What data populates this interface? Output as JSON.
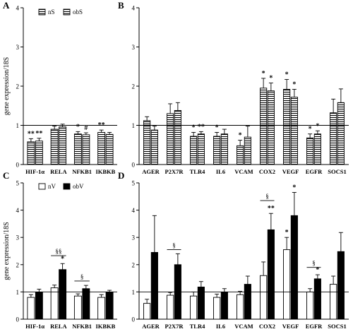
{
  "chart_data": [
    {
      "panel": "A",
      "type": "bar",
      "ylabel": "gene expression/18S",
      "ylim": [
        0,
        4
      ],
      "yticks": [
        0,
        1,
        2,
        3,
        4
      ],
      "reference_line": 1,
      "legend": {
        "position": "top-left",
        "entries": [
          "nS",
          "obS"
        ]
      },
      "categories": [
        "HIF-1α",
        "RELA",
        "NFKB1",
        "IKBKB"
      ],
      "series": [
        {
          "name": "nS",
          "pattern": "horizontal-hatch",
          "values": [
            0.58,
            0.9,
            0.78,
            0.82
          ],
          "errors": [
            0.08,
            0.08,
            0.06,
            0.06
          ]
        },
        {
          "name": "obS",
          "pattern": "horizontal-hatch",
          "values": [
            0.6,
            0.96,
            0.76,
            0.77
          ],
          "errors": [
            0.07,
            0.07,
            0.05,
            0.05
          ]
        }
      ],
      "annotations": [
        {
          "category": 0,
          "series": 0,
          "text": "**"
        },
        {
          "category": 0,
          "series": 1,
          "text": "**"
        },
        {
          "category": 2,
          "series": 0,
          "text": "*"
        },
        {
          "category": 2,
          "series": 1,
          "text": "#"
        },
        {
          "category": 3,
          "series": 0,
          "text": "**"
        }
      ]
    },
    {
      "panel": "B",
      "type": "bar",
      "ylim": [
        0,
        4
      ],
      "yticks": [
        0,
        1,
        2,
        3,
        4
      ],
      "reference_line": 1,
      "categories": [
        "AGER",
        "P2X7R",
        "TLR4",
        "IL6",
        "VCAM",
        "COX2",
        "VEGF",
        "EGFR",
        "SOCS1"
      ],
      "series": [
        {
          "name": "nS",
          "pattern": "horizontal-hatch",
          "values": [
            1.12,
            1.3,
            0.72,
            0.72,
            0.48,
            1.95,
            1.92,
            0.68,
            1.32
          ],
          "errors": [
            0.1,
            0.25,
            0.1,
            0.1,
            0.14,
            0.25,
            0.25,
            0.1,
            0.35
          ]
        },
        {
          "name": "obS",
          "pattern": "horizontal-hatch",
          "values": [
            0.88,
            1.38,
            0.78,
            0.78,
            0.7,
            1.88,
            1.72,
            0.78,
            1.58
          ],
          "errors": [
            0.1,
            0.2,
            0.06,
            0.12,
            0.28,
            0.2,
            0.2,
            0.08,
            0.35
          ]
        }
      ],
      "annotations": [
        {
          "category": 2,
          "series": 0,
          "text": "*"
        },
        {
          "category": 2,
          "series": 1,
          "text": "**"
        },
        {
          "category": 3,
          "series": 0,
          "text": "*"
        },
        {
          "category": 4,
          "series": 0,
          "text": "*"
        },
        {
          "category": 5,
          "series": 0,
          "text": "*"
        },
        {
          "category": 5,
          "series": 1,
          "text": "*"
        },
        {
          "category": 6,
          "series": 0,
          "text": "*"
        },
        {
          "category": 6,
          "series": 1,
          "text": "*"
        },
        {
          "category": 7,
          "series": 0,
          "text": "*"
        },
        {
          "category": 7,
          "series": 1,
          "text": "*"
        }
      ]
    },
    {
      "panel": "C",
      "type": "bar",
      "ylabel": "gene expression/18S",
      "ylim": [
        0,
        5
      ],
      "yticks": [
        0,
        1,
        2,
        3,
        4,
        5
      ],
      "reference_line": 1,
      "legend": {
        "position": "top-left",
        "entries": [
          "nV",
          "obV"
        ]
      },
      "categories": [
        "HIF-1α",
        "RELA",
        "NFKB1",
        "IKBKB"
      ],
      "series": [
        {
          "name": "nV",
          "fill": "#ffffff",
          "values": [
            0.8,
            1.15,
            0.85,
            0.8
          ],
          "errors": [
            0.1,
            0.1,
            0.08,
            0.1
          ]
        },
        {
          "name": "obV",
          "fill": "#000000",
          "values": [
            1.0,
            1.82,
            1.12,
            1.0
          ],
          "errors": [
            0.1,
            0.22,
            0.12,
            0.06
          ]
        }
      ],
      "annotations": [
        {
          "category": 1,
          "series": 1,
          "text": "*"
        }
      ],
      "brackets": [
        {
          "category": 1,
          "level": 2.33,
          "text": "§§"
        },
        {
          "category": 2,
          "level": 1.4,
          "text": "§"
        }
      ]
    },
    {
      "panel": "D",
      "type": "bar",
      "ylim": [
        0,
        5
      ],
      "yticks": [
        0,
        1,
        2,
        3,
        4,
        5
      ],
      "reference_line": 1,
      "categories": [
        "AGER",
        "P2X7R",
        "TLR4",
        "IL6",
        "VCAM",
        "COX2",
        "VEGF",
        "EGFR",
        "SOCS1"
      ],
      "series": [
        {
          "name": "nV",
          "fill": "#ffffff",
          "values": [
            0.58,
            0.88,
            0.85,
            0.8,
            0.9,
            1.6,
            2.55,
            1.0,
            1.28
          ],
          "errors": [
            0.15,
            0.1,
            0.15,
            0.12,
            0.12,
            0.5,
            0.45,
            0.12,
            0.3
          ]
        },
        {
          "name": "obV",
          "fill": "#000000",
          "values": [
            2.45,
            2.0,
            1.18,
            1.0,
            1.28,
            3.28,
            3.8,
            1.48,
            2.48
          ],
          "errors": [
            1.35,
            0.4,
            0.2,
            0.12,
            0.3,
            0.6,
            0.85,
            0.15,
            0.7
          ]
        }
      ],
      "annotations": [
        {
          "category": 5,
          "series": 1,
          "text": "**"
        },
        {
          "category": 6,
          "series": 0,
          "text": "*"
        },
        {
          "category": 6,
          "series": 1,
          "text": "*"
        },
        {
          "category": 7,
          "series": 1,
          "text": "*"
        }
      ],
      "brackets": [
        {
          "category": 1,
          "level": 2.55,
          "text": "§"
        },
        {
          "category": 5,
          "level": 4.35,
          "text": "§"
        },
        {
          "category": 7,
          "level": 1.9,
          "text": "§"
        }
      ]
    }
  ]
}
